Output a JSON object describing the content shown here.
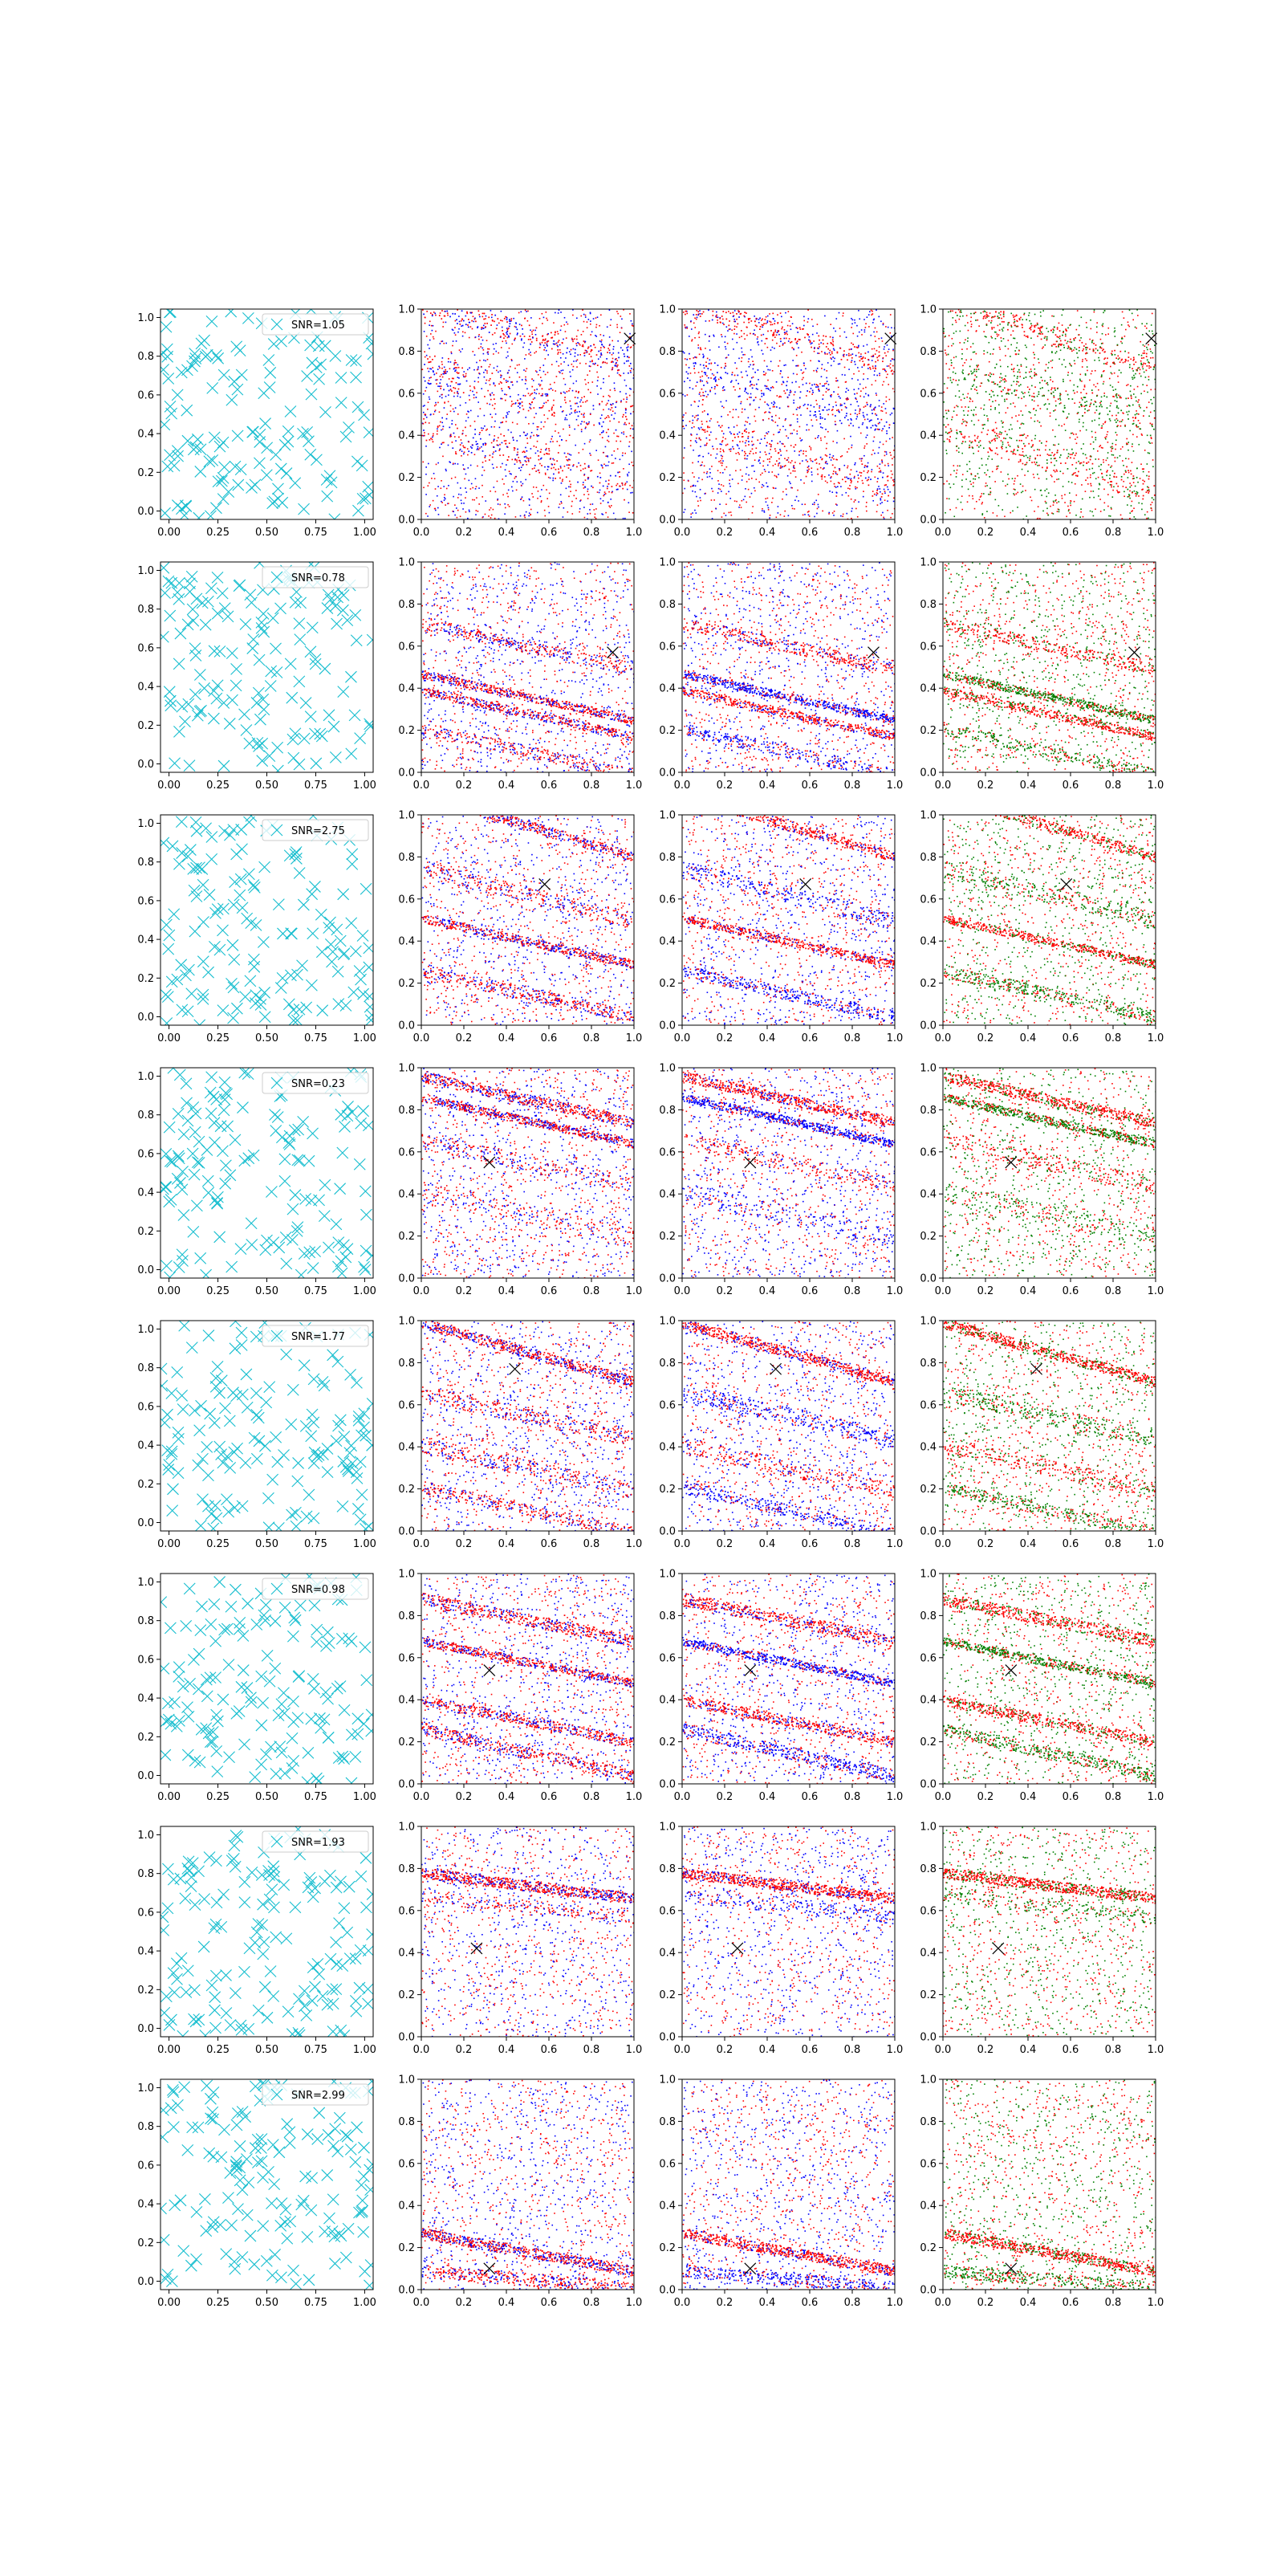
{
  "figure": {
    "rows": 8,
    "cols": 4,
    "xticks_col0": [
      "0.00",
      "0.25",
      "0.50",
      "0.75",
      "1.00"
    ],
    "xticks_other": [
      "0.0",
      "0.2",
      "0.4",
      "0.6",
      "0.8",
      "1.0"
    ],
    "yticks": [
      "0.0",
      "0.2",
      "0.4",
      "0.6",
      "0.8",
      "1.0"
    ]
  },
  "colors": {
    "cyan": "#17becf",
    "red": "#ff0000",
    "blue": "#0000ff",
    "green": "#008000",
    "black": "#000000"
  },
  "chart_data": {
    "type": "scatter",
    "layout": "8 rows x 4 columns of scatter subplots",
    "xlim": [
      0,
      1
    ],
    "ylim": [
      0,
      1
    ],
    "column_marker_colors": [
      [
        "cyan"
      ],
      [
        "red",
        "blue"
      ],
      [
        "red",
        "blue"
      ],
      [
        "red",
        "green"
      ]
    ],
    "rows": [
      {
        "legend": "SNR=1.05",
        "cross": [
          0.98,
          0.86
        ],
        "seed": 11,
        "bands": [
          [
            0.88,
            0.3,
            0.05,
            0.25
          ],
          [
            0.6,
            0.25,
            0.08,
            0.2
          ],
          [
            0.3,
            0.3,
            0.07,
            0.2
          ]
        ]
      },
      {
        "legend": "SNR=0.78",
        "cross": [
          0.9,
          0.57
        ],
        "seed": 23,
        "bands": [
          [
            0.6,
            0.22,
            0.03,
            0.35
          ],
          [
            0.36,
            0.22,
            0.02,
            0.6
          ],
          [
            0.28,
            0.22,
            0.02,
            0.5
          ],
          [
            0.1,
            0.22,
            0.03,
            0.3
          ]
        ]
      },
      {
        "legend": "SNR=2.75",
        "cross": [
          0.58,
          0.67
        ],
        "seed": 37,
        "bands": [
          [
            0.95,
            0.3,
            0.025,
            0.5
          ],
          [
            0.62,
            0.25,
            0.04,
            0.3
          ],
          [
            0.4,
            0.22,
            0.02,
            0.55
          ],
          [
            0.15,
            0.22,
            0.03,
            0.4
          ]
        ]
      },
      {
        "legend": "SNR=0.23",
        "cross": [
          0.32,
          0.55
        ],
        "seed": 41,
        "bands": [
          [
            0.85,
            0.22,
            0.025,
            0.6
          ],
          [
            0.75,
            0.22,
            0.02,
            0.65
          ],
          [
            0.55,
            0.22,
            0.04,
            0.25
          ],
          [
            0.3,
            0.22,
            0.05,
            0.2
          ]
        ]
      },
      {
        "legend": "SNR=1.77",
        "cross": [
          0.44,
          0.77
        ],
        "seed": 53,
        "bands": [
          [
            0.85,
            0.28,
            0.025,
            0.65
          ],
          [
            0.55,
            0.22,
            0.04,
            0.35
          ],
          [
            0.3,
            0.22,
            0.04,
            0.3
          ],
          [
            0.1,
            0.22,
            0.03,
            0.35
          ]
        ]
      },
      {
        "legend": "SNR=0.98",
        "cross": [
          0.32,
          0.54
        ],
        "seed": 67,
        "bands": [
          [
            0.78,
            0.2,
            0.03,
            0.55
          ],
          [
            0.58,
            0.2,
            0.02,
            0.6
          ],
          [
            0.3,
            0.2,
            0.025,
            0.5
          ],
          [
            0.15,
            0.22,
            0.03,
            0.45
          ]
        ]
      },
      {
        "legend": "SNR=1.93",
        "cross": [
          0.26,
          0.42
        ],
        "seed": 71,
        "bands": [
          [
            0.72,
            0.12,
            0.025,
            0.75
          ],
          [
            0.62,
            0.1,
            0.03,
            0.2
          ]
        ]
      },
      {
        "legend": "SNR=2.99",
        "cross": [
          0.32,
          0.1
        ],
        "seed": 83,
        "bands": [
          [
            0.18,
            0.18,
            0.025,
            0.7
          ],
          [
            0.05,
            0.08,
            0.03,
            0.4
          ]
        ]
      }
    ]
  }
}
